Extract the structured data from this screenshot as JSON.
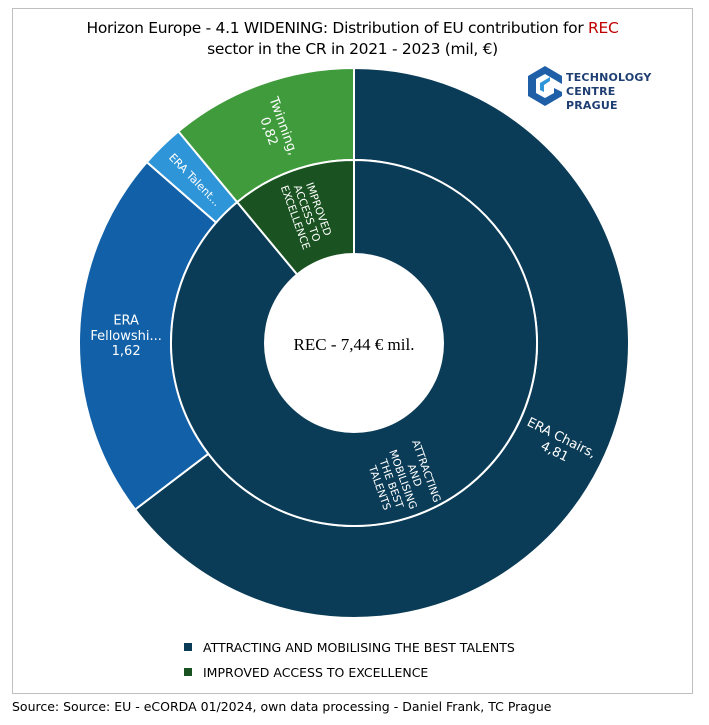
{
  "title": {
    "line1": "Horizon Europe - 4.1 WIDENING: Distribution of EU contribution for ",
    "line1_accent": "REC",
    "line2": "sector in the CR in 2021 - 2023 (mil, €)"
  },
  "logo": {
    "line1": "TECHNOLOGY",
    "line2": "CENTRE PRAGUE",
    "icon": "technology-centre-prague-logo-icon"
  },
  "center_label": "REC - 7,44  € mil.",
  "legend": [
    {
      "label": "ATTRACTING AND MOBILISING THE BEST TALENTS",
      "color": "#0b3c57"
    },
    {
      "label": "IMPROVED ACCESS TO EXCELLENCE",
      "color": "#1a5321"
    }
  ],
  "source": "Source: Source: EU - eCORDA 01/2024, own data processing  - Daniel Frank, TC Prague",
  "chart_data": {
    "type": "sunburst",
    "total": 7.44,
    "total_label": "REC - 7,44  € mil.",
    "inner": [
      {
        "name": "ATTRACTING AND MOBILISING THE BEST TALENTS",
        "label_lines": [
          "ATTRACTING",
          "AND",
          "MOBILISING",
          "THE BEST",
          "TALENTS"
        ],
        "value": 6.62,
        "color": "#0b3c57"
      },
      {
        "name": "IMPROVED ACCESS TO EXCELLENCE",
        "label_lines": [
          "IMPROVED",
          "ACCESS TO",
          "EXCELLENCE"
        ],
        "value": 0.82,
        "color": "#1a5321"
      }
    ],
    "outer": [
      {
        "name": "ERA Chairs",
        "parent": "ATTRACTING AND MOBILISING THE BEST TALENTS",
        "label_lines": [
          "ERA Chairs,",
          "4,81"
        ],
        "value": 4.81,
        "color": "#0b3c57"
      },
      {
        "name": "ERA Fellowships",
        "parent": "ATTRACTING AND MOBILISING THE BEST TALENTS",
        "label_lines": [
          "ERA",
          "Fellowshi...",
          "1,62"
        ],
        "value": 1.62,
        "color": "#1261a8"
      },
      {
        "name": "ERA Talents",
        "parent": "ATTRACTING AND MOBILISING THE BEST TALENTS",
        "label_lines": [
          "ERA Talent..."
        ],
        "value": 0.19,
        "color": "#2f95d9"
      },
      {
        "name": "Twinning",
        "parent": "IMPROVED ACCESS TO EXCELLENCE",
        "label_lines": [
          "Twinning,",
          "0,82"
        ],
        "value": 0.82,
        "color": "#3f9b3b"
      }
    ]
  }
}
